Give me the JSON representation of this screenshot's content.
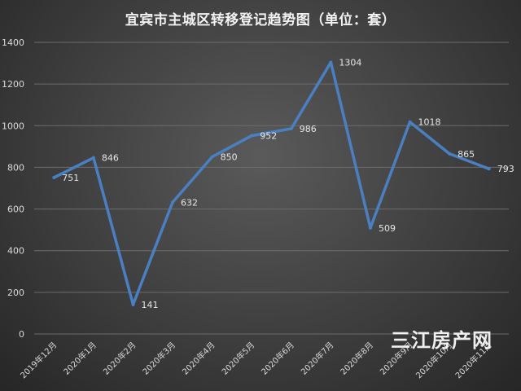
{
  "chart_data": {
    "type": "line",
    "title": "宜宾市主城区转移登记趋势图（单位：套）",
    "categories": [
      "2019年12月",
      "2020年1月",
      "2020年2月",
      "2020年3月",
      "2020年4月",
      "2020年5月",
      "2020年6月",
      "2020年7月",
      "2020年8月",
      "2020年9月",
      "2020年10月",
      "2020年11月"
    ],
    "values": [
      751,
      846,
      141,
      632,
      850,
      952,
      986,
      1304,
      509,
      1018,
      865,
      793
    ],
    "ylim": [
      0,
      1400
    ],
    "yticks": [
      0,
      200,
      400,
      600,
      800,
      1000,
      1200,
      1400
    ],
    "grid": true,
    "legend": "none",
    "line_color": "#4a7fc1"
  },
  "watermark": "三江房产网"
}
